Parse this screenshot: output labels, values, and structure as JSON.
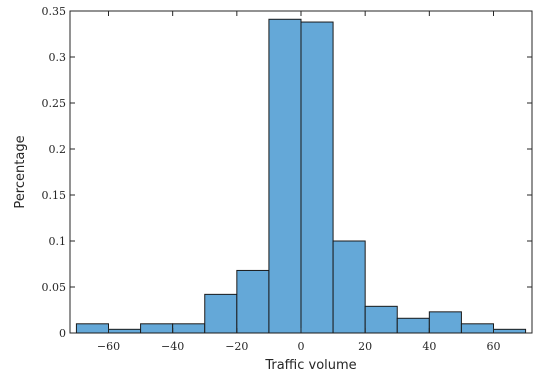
{
  "chart_data": {
    "type": "bar",
    "subtype": "histogram",
    "title": "",
    "xlabel": "Traffic volume",
    "ylabel": "Percentage",
    "xlim": [
      -72,
      72
    ],
    "ylim": [
      0,
      0.35
    ],
    "x_ticks": [
      -60,
      -40,
      -20,
      0,
      20,
      40,
      60
    ],
    "x_tick_labels": [
      "−60",
      "−40",
      "−20",
      "0",
      "20",
      "40",
      "60"
    ],
    "y_ticks": [
      0,
      0.05,
      0.1,
      0.15,
      0.2,
      0.25,
      0.3,
      0.35
    ],
    "y_tick_labels": [
      "0",
      "0.05",
      "0.1",
      "0.15",
      "0.2",
      "0.25",
      "0.3",
      "0.35"
    ],
    "bin_edges": [
      -70,
      -60,
      -50,
      -40,
      -30,
      -20,
      -10,
      0,
      10,
      20,
      30,
      40,
      50,
      60,
      70
    ],
    "values": [
      0.01,
      0.004,
      0.01,
      0.01,
      0.042,
      0.068,
      0.341,
      0.338,
      0.1,
      0.029,
      0.016,
      0.023,
      0.01,
      0.004
    ],
    "grid": false,
    "legend": "none",
    "bar_color": "#64a8d8",
    "edge_color": "#1a1a1a"
  }
}
